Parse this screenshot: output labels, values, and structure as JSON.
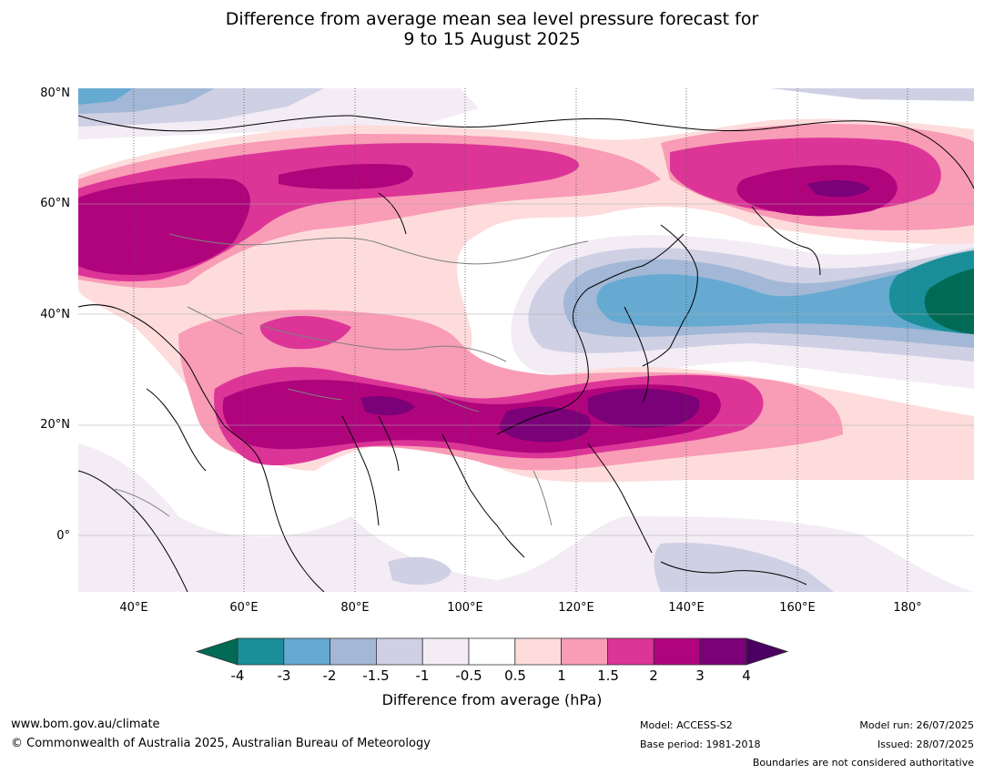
{
  "title": {
    "line1": "Difference from average mean sea level pressure forecast for",
    "line2": "9 to 15 August 2025"
  },
  "map": {
    "lat_labels": [
      "80°N",
      "60°N",
      "40°N",
      "20°N",
      "0°"
    ],
    "lon_labels": [
      "40°E",
      "60°E",
      "80°E",
      "100°E",
      "120°E",
      "140°E",
      "160°E",
      "180°"
    ],
    "lon_range": [
      30,
      192
    ],
    "lat_range": [
      -10,
      81
    ],
    "gridlines": "dotted"
  },
  "colorbar": {
    "ticks": [
      "-4",
      "-3",
      "-2",
      "-1.5",
      "-1",
      "-0.5",
      "0.5",
      "1",
      "1.5",
      "2",
      "3",
      "4"
    ],
    "colors": {
      "below": "#006a55",
      "levels": [
        "#1a8f99",
        "#66aad1",
        "#a3b8d6",
        "#cfd0e4",
        "#f3ecf5",
        "#ffffff",
        "#fedcdc",
        "#f99cb6",
        "#dc3597",
        "#b0047d",
        "#7a0177"
      ],
      "above": "#4a0060"
    },
    "label": "Difference from average (hPa)"
  },
  "footer": {
    "website": "www.bom.gov.au/climate",
    "copyright": "© Commonwealth of Australia 2025, Australian Bureau of Meteorology",
    "model": "Model: ACCESS-S2",
    "base_period": "Base period: 1981-2018",
    "model_run": "Model run: 26/07/2025",
    "issued": "Issued: 28/07/2025",
    "disclaimer": "Boundaries are not considered authoritative"
  }
}
